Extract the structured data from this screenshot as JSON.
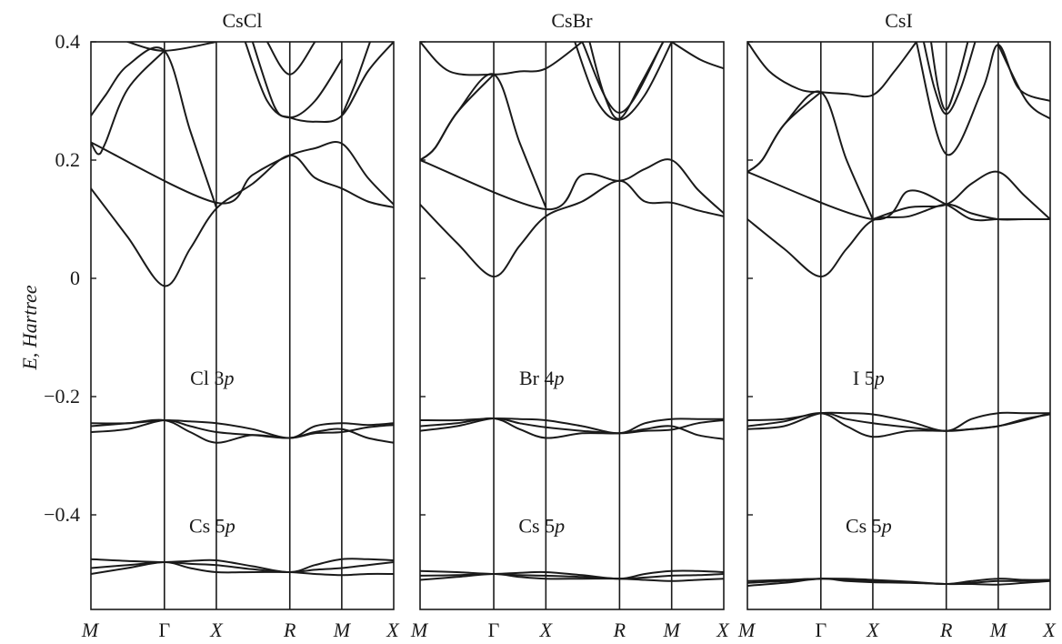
{
  "chart_data": [
    {
      "type": "line",
      "title": "CsCl",
      "ylabel": "E, Hartree",
      "ylim": [
        -0.56,
        0.4
      ],
      "yticks": [
        0.4,
        0.2,
        0,
        -0.2,
        -0.4
      ],
      "ytick_labels": [
        "0.4",
        "0.2",
        "0",
        "−0.2",
        "−0.4"
      ],
      "kpoints": [
        "M",
        "Γ",
        "X",
        "R",
        "M",
        "X"
      ],
      "k_positions": [
        0,
        1,
        1.7071,
        2.7071,
        3.4142,
        4.1213
      ],
      "annotations": [
        {
          "text_main": "Cl 3",
          "text_italic": "p",
          "k": 1.65,
          "E": -0.18
        },
        {
          "text_main": "Cs 5",
          "text_italic": "p",
          "k": 1.65,
          "E": -0.43
        }
      ],
      "series": [
        {
          "x": [
            0,
            0.5,
            1,
            1.35,
            1.7071,
            2.2,
            2.7071,
            3.05,
            3.4142,
            3.77,
            4.1213
          ],
          "y": [
            0.152,
            0.07,
            -0.013,
            0.05,
            0.118,
            0.16,
            0.208,
            0.17,
            0.152,
            0.13,
            0.12
          ]
        },
        {
          "x": [
            0,
            1.7071,
            2.2,
            2.7071,
            3.05,
            3.4142,
            3.77,
            4.1213
          ],
          "y": [
            0.23,
            0.128,
            0.175,
            0.208,
            0.22,
            0.228,
            0.17,
            0.125
          ]
        },
        {
          "x": [
            0,
            0.1,
            0.2,
            0.5,
            1
          ],
          "y": [
            0.23,
            0.21,
            0.23,
            0.32,
            0.385
          ]
        },
        {
          "x": [
            0,
            0.2,
            0.5,
            1,
            1.35,
            1.7071
          ],
          "y": [
            0.275,
            0.31,
            0.36,
            0.385,
            0.25,
            0.12
          ]
        },
        {
          "x": [
            0.5,
            1,
            1.7071
          ],
          "y": [
            0.4,
            0.385,
            0.4
          ]
        },
        {
          "x": [
            2.2,
            2.5,
            2.7071,
            3.05,
            3.4142,
            3.77,
            4.1213
          ],
          "y": [
            0.4,
            0.29,
            0.272,
            0.265,
            0.275,
            0.35,
            0.4
          ]
        },
        {
          "x": [
            2.1,
            2.4,
            2.7071,
            3.05,
            3.4142
          ],
          "y": [
            0.4,
            0.3,
            0.272,
            0.3,
            0.37
          ]
        },
        {
          "x": [
            2.4,
            2.7071,
            3.05
          ],
          "y": [
            0.4,
            0.345,
            0.4
          ]
        },
        {
          "x": [
            3.4142,
            3.6,
            3.8
          ],
          "y": [
            0.275,
            0.33,
            0.4
          ]
        },
        {
          "x": [
            0,
            0.5,
            1,
            1.35,
            1.7071,
            2.2,
            2.7071,
            3.05,
            3.4142,
            3.77,
            4.1213
          ],
          "y": [
            -0.245,
            -0.245,
            -0.24,
            -0.242,
            -0.245,
            -0.255,
            -0.27,
            -0.25,
            -0.245,
            -0.248,
            -0.245
          ]
        },
        {
          "x": [
            0,
            0.5,
            1,
            1.35,
            1.7071,
            2.2,
            2.7071,
            3.05,
            3.4142,
            3.77,
            4.1213
          ],
          "y": [
            -0.25,
            -0.245,
            -0.24,
            -0.26,
            -0.278,
            -0.265,
            -0.27,
            -0.26,
            -0.255,
            -0.27,
            -0.278
          ]
        },
        {
          "x": [
            0,
            0.5,
            1,
            1.35,
            1.7071,
            2.2,
            2.7071,
            3.05,
            3.4142,
            3.77,
            4.1213
          ],
          "y": [
            -0.26,
            -0.255,
            -0.24,
            -0.25,
            -0.26,
            -0.265,
            -0.27,
            -0.262,
            -0.26,
            -0.252,
            -0.248
          ]
        },
        {
          "x": [
            0,
            0.5,
            1,
            1.35,
            1.7071,
            2.2,
            2.7071,
            3.05,
            3.4142,
            3.77,
            4.1213
          ],
          "y": [
            -0.475,
            -0.478,
            -0.48,
            -0.478,
            -0.477,
            -0.487,
            -0.497,
            -0.485,
            -0.475,
            -0.475,
            -0.477
          ]
        },
        {
          "x": [
            0,
            0.5,
            1,
            1.35,
            1.7071,
            2.2,
            2.7071,
            3.05,
            3.4142,
            3.77,
            4.1213
          ],
          "y": [
            -0.5,
            -0.49,
            -0.48,
            -0.49,
            -0.497,
            -0.497,
            -0.497,
            -0.5,
            -0.502,
            -0.5,
            -0.5
          ]
        },
        {
          "x": [
            0,
            0.5,
            1,
            1.35,
            1.7071,
            2.2,
            2.7071,
            3.05,
            3.4142,
            3.77,
            4.1213
          ],
          "y": [
            -0.49,
            -0.485,
            -0.48,
            -0.483,
            -0.485,
            -0.492,
            -0.497,
            -0.493,
            -0.49,
            -0.485,
            -0.48
          ]
        }
      ]
    },
    {
      "type": "line",
      "title": "CsBr",
      "ylim": [
        -0.56,
        0.4
      ],
      "kpoints": [
        "M",
        "Γ",
        "X",
        "R",
        "M",
        "X"
      ],
      "k_positions": [
        0,
        1,
        1.7071,
        2.7071,
        3.4142,
        4.1213
      ],
      "annotations": [
        {
          "text_main": "Br 4",
          "text_italic": "p",
          "k": 1.65,
          "E": -0.18
        },
        {
          "text_main": "Cs 5",
          "text_italic": "p",
          "k": 1.65,
          "E": -0.43
        }
      ],
      "series": [
        {
          "x": [
            0,
            0.5,
            1,
            1.35,
            1.7071,
            2.2,
            2.7071,
            3.05,
            3.4142,
            3.77,
            4.1213
          ],
          "y": [
            0.125,
            0.06,
            0.003,
            0.055,
            0.105,
            0.13,
            0.165,
            0.13,
            0.128,
            0.115,
            0.105
          ]
        },
        {
          "x": [
            0,
            1.7071,
            2.2,
            2.7071,
            3.05,
            3.4142,
            3.77,
            4.1213
          ],
          "y": [
            0.2,
            0.117,
            0.175,
            0.165,
            0.185,
            0.2,
            0.15,
            0.11
          ]
        },
        {
          "x": [
            0,
            0.2,
            0.5,
            1
          ],
          "y": [
            0.2,
            0.22,
            0.28,
            0.345
          ]
        },
        {
          "x": [
            0,
            0.2,
            0.5,
            1,
            1.35,
            1.7071
          ],
          "y": [
            0.2,
            0.22,
            0.28,
            0.345,
            0.23,
            0.12
          ]
        },
        {
          "x": [
            0,
            0.4,
            1,
            1.35,
            1.7071,
            2.2
          ],
          "y": [
            0.4,
            0.35,
            0.345,
            0.35,
            0.355,
            0.4
          ]
        },
        {
          "x": [
            2.1,
            2.4,
            2.7071,
            3.05,
            3.4142
          ],
          "y": [
            0.4,
            0.3,
            0.268,
            0.31,
            0.4
          ]
        },
        {
          "x": [
            2.3,
            2.5,
            2.7071,
            3.0,
            3.3
          ],
          "y": [
            0.4,
            0.31,
            0.27,
            0.33,
            0.4
          ]
        },
        {
          "x": [
            2.2,
            2.7071,
            3.3
          ],
          "y": [
            0.4,
            0.28,
            0.4
          ]
        },
        {
          "x": [
            3.4142,
            3.8,
            4.1213
          ],
          "y": [
            0.4,
            0.37,
            0.355
          ]
        },
        {
          "x": [
            0,
            0.5,
            1,
            1.35,
            1.7071,
            2.2,
            2.7071,
            3.05,
            3.4142,
            3.77,
            4.1213
          ],
          "y": [
            -0.24,
            -0.24,
            -0.237,
            -0.238,
            -0.24,
            -0.25,
            -0.262,
            -0.245,
            -0.238,
            -0.238,
            -0.238
          ]
        },
        {
          "x": [
            0,
            0.5,
            1,
            1.35,
            1.7071,
            2.2,
            2.7071,
            3.05,
            3.4142,
            3.77,
            4.1213
          ],
          "y": [
            -0.25,
            -0.245,
            -0.237,
            -0.255,
            -0.27,
            -0.262,
            -0.262,
            -0.255,
            -0.25,
            -0.265,
            -0.272
          ]
        },
        {
          "x": [
            0,
            0.5,
            1,
            1.35,
            1.7071,
            2.2,
            2.7071,
            3.05,
            3.4142,
            3.77,
            4.1213
          ],
          "y": [
            -0.258,
            -0.25,
            -0.237,
            -0.245,
            -0.252,
            -0.258,
            -0.262,
            -0.258,
            -0.256,
            -0.245,
            -0.24
          ]
        },
        {
          "x": [
            0,
            0.5,
            1,
            1.35,
            1.7071,
            2.2,
            2.7071,
            3.05,
            3.4142,
            3.77,
            4.1213
          ],
          "y": [
            -0.495,
            -0.497,
            -0.5,
            -0.498,
            -0.497,
            -0.502,
            -0.508,
            -0.5,
            -0.495,
            -0.495,
            -0.497
          ]
        },
        {
          "x": [
            0,
            0.5,
            1,
            1.35,
            1.7071,
            2.2,
            2.7071,
            3.05,
            3.4142,
            3.77,
            4.1213
          ],
          "y": [
            -0.51,
            -0.505,
            -0.5,
            -0.505,
            -0.508,
            -0.508,
            -0.508,
            -0.51,
            -0.512,
            -0.51,
            -0.508
          ]
        },
        {
          "x": [
            0,
            0.5,
            1,
            1.35,
            1.7071,
            2.2,
            2.7071,
            3.05,
            3.4142,
            3.77,
            4.1213
          ],
          "y": [
            -0.503,
            -0.502,
            -0.5,
            -0.502,
            -0.503,
            -0.505,
            -0.508,
            -0.506,
            -0.503,
            -0.502,
            -0.5
          ]
        }
      ]
    },
    {
      "type": "line",
      "title": "CsI",
      "ylim": [
        -0.56,
        0.4
      ],
      "kpoints": [
        "M",
        "Γ",
        "X",
        "R",
        "M",
        "X"
      ],
      "k_positions": [
        0,
        1,
        1.7071,
        2.7071,
        3.4142,
        4.1213
      ],
      "annotations": [
        {
          "text_main": "I 5",
          "text_italic": "p",
          "k": 1.65,
          "E": -0.18
        },
        {
          "text_main": "Cs 5",
          "text_italic": "p",
          "k": 1.65,
          "E": -0.43
        }
      ],
      "series": [
        {
          "x": [
            0,
            0.5,
            1,
            1.35,
            1.7071,
            2.2,
            2.7071,
            3.05,
            3.4142,
            3.77,
            4.1213
          ],
          "y": [
            0.1,
            0.05,
            0.003,
            0.05,
            0.098,
            0.105,
            0.125,
            0.11,
            0.1,
            0.1,
            0.1
          ]
        },
        {
          "x": [
            0,
            1.7071,
            2.2,
            2.7071,
            3.05,
            3.4142,
            3.77,
            4.1213
          ],
          "y": [
            0.18,
            0.1,
            0.148,
            0.125,
            0.1,
            0.1,
            0.1,
            0.1
          ]
        },
        {
          "x": [
            1.7071,
            2.2,
            2.7071,
            3.05,
            3.4142,
            3.77,
            4.1213
          ],
          "y": [
            0.1,
            0.12,
            0.125,
            0.16,
            0.18,
            0.14,
            0.1
          ]
        },
        {
          "x": [
            0,
            0.2,
            0.5,
            1
          ],
          "y": [
            0.18,
            0.2,
            0.26,
            0.315
          ]
        },
        {
          "x": [
            0,
            0.2,
            0.5,
            1,
            1.35,
            1.7071
          ],
          "y": [
            0.18,
            0.2,
            0.26,
            0.315,
            0.2,
            0.1
          ]
        },
        {
          "x": [
            0,
            0.3,
            0.7,
            1,
            1.35,
            1.7071,
            2.0,
            2.3
          ],
          "y": [
            0.4,
            0.35,
            0.32,
            0.315,
            0.312,
            0.31,
            0.35,
            0.4
          ]
        },
        {
          "x": [
            2.4,
            2.55,
            2.7071,
            2.9,
            3.1
          ],
          "y": [
            0.4,
            0.32,
            0.278,
            0.32,
            0.4
          ]
        },
        {
          "x": [
            2.5,
            2.6,
            2.7071,
            2.85,
            3.0
          ],
          "y": [
            0.4,
            0.32,
            0.285,
            0.33,
            0.4
          ]
        },
        {
          "x": [
            2.3,
            2.7071,
            3.2,
            3.4142,
            3.7,
            4.1213
          ],
          "y": [
            0.4,
            0.21,
            0.32,
            0.395,
            0.32,
            0.3
          ]
        },
        {
          "x": [
            3.4142,
            3.8,
            4.1213
          ],
          "y": [
            0.395,
            0.3,
            0.27
          ]
        },
        {
          "x": [
            0,
            0.5,
            1,
            1.35,
            1.7071,
            2.2,
            2.7071,
            3.05,
            3.4142,
            3.77,
            4.1213
          ],
          "y": [
            -0.24,
            -0.238,
            -0.228,
            -0.228,
            -0.23,
            -0.242,
            -0.258,
            -0.238,
            -0.228,
            -0.228,
            -0.228
          ]
        },
        {
          "x": [
            0,
            0.5,
            1,
            1.35,
            1.7071,
            2.2,
            2.7071,
            3.05,
            3.4142,
            3.77,
            4.1213
          ],
          "y": [
            -0.25,
            -0.242,
            -0.228,
            -0.25,
            -0.268,
            -0.258,
            -0.258,
            -0.255,
            -0.25,
            -0.24,
            -0.228
          ]
        },
        {
          "x": [
            0,
            0.5,
            1,
            1.35,
            1.7071,
            2.2,
            2.7071,
            3.05,
            3.4142,
            3.77,
            4.1213
          ],
          "y": [
            -0.255,
            -0.25,
            -0.228,
            -0.238,
            -0.245,
            -0.252,
            -0.258,
            -0.255,
            -0.25,
            -0.238,
            -0.23
          ]
        },
        {
          "x": [
            0,
            0.5,
            1,
            1.35,
            1.7071,
            2.2,
            2.7071,
            3.05,
            3.4142,
            3.77,
            4.1213
          ],
          "y": [
            -0.512,
            -0.51,
            -0.508,
            -0.508,
            -0.51,
            -0.513,
            -0.517,
            -0.512,
            -0.508,
            -0.51,
            -0.51
          ]
        },
        {
          "x": [
            0,
            0.5,
            1,
            1.35,
            1.7071,
            2.2,
            2.7071,
            3.05,
            3.4142,
            3.77,
            4.1213
          ],
          "y": [
            -0.52,
            -0.515,
            -0.508,
            -0.512,
            -0.514,
            -0.515,
            -0.517,
            -0.517,
            -0.518,
            -0.515,
            -0.512
          ]
        },
        {
          "x": [
            0,
            0.5,
            1,
            1.35,
            1.7071,
            2.2,
            2.7071,
            3.05,
            3.4142,
            3.77,
            4.1213
          ],
          "y": [
            -0.515,
            -0.512,
            -0.508,
            -0.51,
            -0.512,
            -0.514,
            -0.517,
            -0.515,
            -0.512,
            -0.512,
            -0.51
          ]
        }
      ]
    }
  ]
}
